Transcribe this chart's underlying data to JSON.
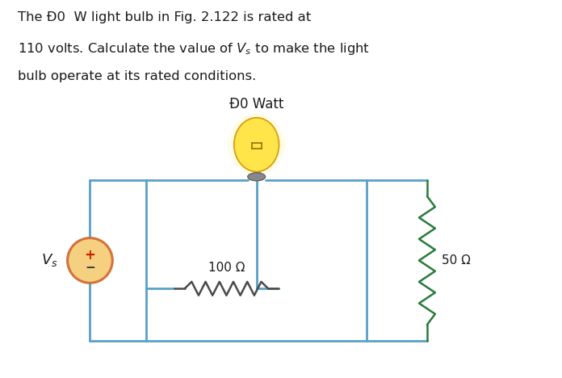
{
  "line1": "The Đ0  W light bulb in Fig. 2.122 is rated at",
  "line2": "110 volts. Calculate the value of $V_s$ to make the light",
  "line3": "bulb operate at its rated conditions.",
  "bulb_label": "Đ0 Watt",
  "resistor1_label": "100 Ω",
  "resistor2_label": "50 Ω",
  "vs_plus": "+",
  "vs_minus": "−",
  "vs_label": "$V_s$",
  "circuit_line_color": "#5aa0c8",
  "circuit_lw": 2.0,
  "bg_color": "#ffffff",
  "text_color": "#1a1a1a",
  "source_border_color": "#d4713a",
  "source_fill_color": "#f5d080",
  "source_plus_color": "#cc2200",
  "source_minus_color": "#333333",
  "resistor1_color": "#4a4a4a",
  "resistor2_color": "#2a7a3a",
  "bulb_base_color": "#777777",
  "bulb_socket_color": "#999999",
  "bulb_glow_color": "#ffe566",
  "bulb_outline_color": "#cc9900"
}
